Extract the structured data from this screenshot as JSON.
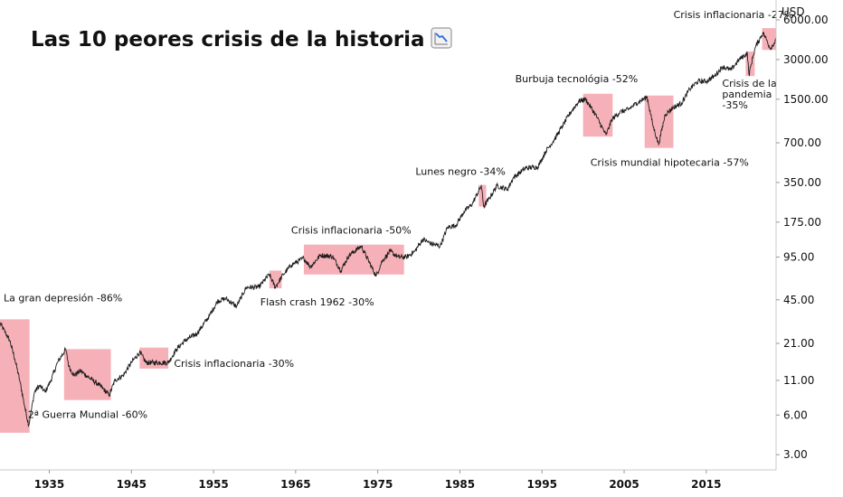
{
  "chart_data": {
    "type": "line",
    "title": "Las 10 peores crisis de la historia",
    "title_icon": "chart-decreasing-icon",
    "y_unit": "USD",
    "y_scale": "log",
    "ylim": [
      2.3,
      8500
    ],
    "xlim": [
      1929,
      2023.5
    ],
    "y_ticks": [
      "6000.00",
      "3000.00",
      "1500.00",
      "700.00",
      "350.00",
      "175.00",
      "95.00",
      "45.00",
      "21.00",
      "11.00",
      "6.00",
      "3.00"
    ],
    "x_ticks": [
      "1935",
      "1945",
      "1955",
      "1965",
      "1975",
      "1985",
      "1995",
      "2005",
      "2015"
    ],
    "series_color": "#1c1c1c",
    "highlight_color": "#f4a3ab",
    "series": [
      {
        "x": [
          1929.0,
          1929.7,
          1930.2,
          1930.8,
          1931.4,
          1932.0,
          1932.5,
          1933.2,
          1933.8,
          1934.5,
          1935.2,
          1936.0,
          1937.0,
          1937.4,
          1938.0,
          1938.8,
          1939.5,
          1940.3,
          1941.2,
          1942.3,
          1943.0,
          1944.0,
          1945.0,
          1946.0,
          1946.8,
          1947.5,
          1948.5,
          1949.5,
          1950.5,
          1951.5,
          1953.0,
          1954.5,
          1955.5,
          1956.5,
          1957.8,
          1959.0,
          1960.5,
          1961.8,
          1962.5,
          1963.5,
          1964.5,
          1966.0,
          1966.8,
          1968.0,
          1969.5,
          1970.5,
          1971.5,
          1973.0,
          1974.8,
          1975.5,
          1976.5,
          1977.5,
          1978.5,
          1979.5,
          1980.5,
          1981.5,
          1982.6,
          1983.5,
          1984.5,
          1985.5,
          1986.5,
          1987.6,
          1987.9,
          1988.5,
          1989.5,
          1990.8,
          1991.5,
          1993.0,
          1994.5,
          1995.5,
          1996.5,
          1997.5,
          1998.5,
          1999.5,
          2000.3,
          2001.5,
          2002.8,
          2003.5,
          2004.5,
          2005.5,
          2006.5,
          2007.8,
          2008.5,
          2009.2,
          2010.0,
          2011.0,
          2012.0,
          2013.0,
          2014.0,
          2015.0,
          2016.0,
          2017.0,
          2018.0,
          2019.0,
          2020.0,
          2020.2,
          2020.7,
          2021.0,
          2021.9,
          2022.3,
          2022.8,
          2023.5
        ],
        "y": [
          30,
          25,
          22,
          16,
          11,
          7,
          5,
          9,
          10,
          9,
          11,
          15,
          19,
          14,
          12,
          13,
          12,
          11,
          10,
          8.5,
          11,
          12,
          15,
          18,
          15,
          15,
          15,
          15,
          19,
          22,
          25,
          34,
          44,
          46,
          40,
          56,
          56,
          70,
          56,
          70,
          83,
          93,
          80,
          98,
          96,
          75,
          98,
          115,
          68,
          88,
          105,
          95,
          95,
          105,
          130,
          120,
          115,
          160,
          165,
          210,
          240,
          330,
          230,
          260,
          330,
          310,
          380,
          450,
          460,
          610,
          740,
          940,
          1200,
          1450,
          1500,
          1150,
          800,
          1050,
          1200,
          1250,
          1400,
          1560,
          950,
          680,
          1150,
          1300,
          1400,
          1800,
          2050,
          2050,
          2250,
          2650,
          2500,
          3000,
          3350,
          2300,
          3200,
          3750,
          4800,
          4300,
          3650,
          4200
        ]
      }
    ],
    "crises": [
      {
        "label": "La gran depresión -86%",
        "x0": 1929.0,
        "x1": 1932.6,
        "y_low": 4.4,
        "y_high": 32
      },
      {
        "label": "2ª Guerra Mundial -60%",
        "x0": 1936.8,
        "x1": 1942.5,
        "y_low": 7.8,
        "y_high": 19
      },
      {
        "label": "Crisis inflacionaria -30%",
        "x0": 1946.0,
        "x1": 1949.5,
        "y_low": 13.5,
        "y_high": 19.5
      },
      {
        "label": "Flash crash 1962 -30%",
        "x0": 1961.8,
        "x1": 1963.3,
        "y_low": 55,
        "y_high": 75
      },
      {
        "label": "Crisis inflacionaria -50%",
        "x0": 1966.0,
        "x1": 1978.2,
        "y_low": 70,
        "y_high": 118
      },
      {
        "label": "Lunes negro -34%",
        "x0": 1987.3,
        "x1": 1988.2,
        "y_low": 230,
        "y_high": 335
      },
      {
        "label": "Burbuja tecnológia -52%",
        "x0": 2000.0,
        "x1": 2003.6,
        "y_low": 780,
        "y_high": 1650
      },
      {
        "label": "Crisis mundial hipotecaria -57%",
        "x0": 2007.5,
        "x1": 2011.0,
        "y_low": 640,
        "y_high": 1600
      },
      {
        "label": "Crisis de la pandemia -35%",
        "x0": 2019.8,
        "x1": 2020.9,
        "y_low": 2250,
        "y_high": 3450
      },
      {
        "label": "Crisis inflacionaria -27%",
        "x0": 2021.8,
        "x1": 2023.5,
        "y_low": 3550,
        "y_high": 5200
      }
    ]
  }
}
